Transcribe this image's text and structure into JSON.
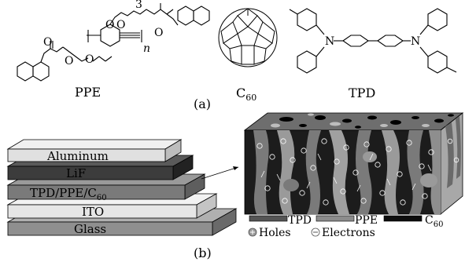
{
  "panel_a": {
    "label": "(a)",
    "molecules": [
      {
        "name": "PPE",
        "atoms": {
          "o": "O",
          "n_sub": "n",
          "n3_sup": "3"
        }
      },
      {
        "name": "C",
        "subscript": "60"
      },
      {
        "name": "TPD",
        "atoms": {
          "n": "N"
        }
      }
    ]
  },
  "panel_b": {
    "label": "(b)",
    "device_layers": [
      {
        "name": "Aluminum"
      },
      {
        "name": "LiF"
      },
      {
        "name": "TPD/PPE/C",
        "subscript": "60"
      },
      {
        "name": "ITO"
      },
      {
        "name": "Glass"
      }
    ],
    "legend": {
      "materials": [
        {
          "name": "TPD",
          "color": "#555555"
        },
        {
          "name": "PPE",
          "color": "#8c8c8c"
        },
        {
          "name": "C",
          "subscript": "60",
          "color": "#0d0d0d"
        }
      ],
      "carriers": [
        {
          "name": "Holes",
          "symbol": "⊕"
        },
        {
          "name": "Electrons",
          "symbol": "⊖"
        }
      ]
    },
    "colors": {
      "aluminum": "#e0e0e0",
      "lif": "#3c3c3c",
      "active": "#7a7a7a",
      "ito": "#e6e6e6",
      "glass": "#8f8f8f",
      "block_top": "#6e6e6e",
      "block_front": "#1c1c1c",
      "block_side": "#a8a8a8"
    }
  }
}
